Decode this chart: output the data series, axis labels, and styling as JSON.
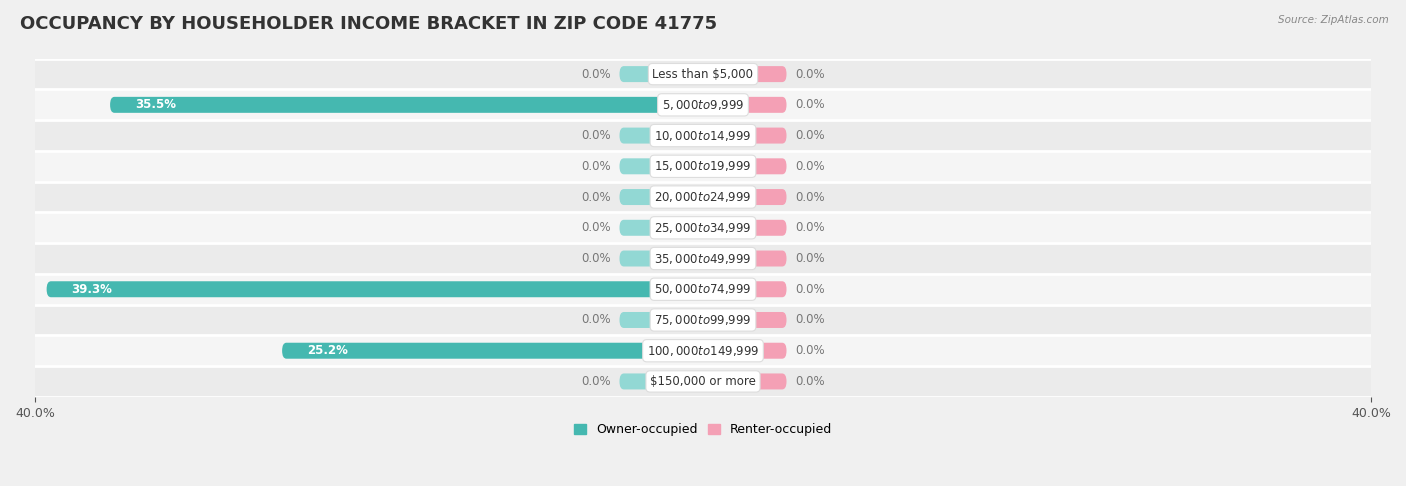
{
  "title": "OCCUPANCY BY HOUSEHOLDER INCOME BRACKET IN ZIP CODE 41775",
  "source": "Source: ZipAtlas.com",
  "categories": [
    "Less than $5,000",
    "$5,000 to $9,999",
    "$10,000 to $14,999",
    "$15,000 to $19,999",
    "$20,000 to $24,999",
    "$25,000 to $34,999",
    "$35,000 to $49,999",
    "$50,000 to $74,999",
    "$75,000 to $99,999",
    "$100,000 to $149,999",
    "$150,000 or more"
  ],
  "owner_values": [
    0.0,
    35.5,
    0.0,
    0.0,
    0.0,
    0.0,
    0.0,
    39.3,
    0.0,
    25.2,
    0.0
  ],
  "renter_values": [
    0.0,
    0.0,
    0.0,
    0.0,
    0.0,
    0.0,
    0.0,
    0.0,
    0.0,
    0.0,
    0.0
  ],
  "owner_color": "#45B8B0",
  "owner_stub_color": "#92D8D4",
  "renter_color": "#F4A0B5",
  "renter_stub_color": "#F4A0B5",
  "axis_limit": 40.0,
  "stub_size": 5.0,
  "bg_color": "#f0f0f0",
  "row_bg_even": "#ebebeb",
  "row_bg_odd": "#f5f5f5",
  "legend_owner": "Owner-occupied",
  "legend_renter": "Renter-occupied",
  "title_fontsize": 13,
  "label_fontsize": 8.5,
  "category_fontsize": 8.5
}
